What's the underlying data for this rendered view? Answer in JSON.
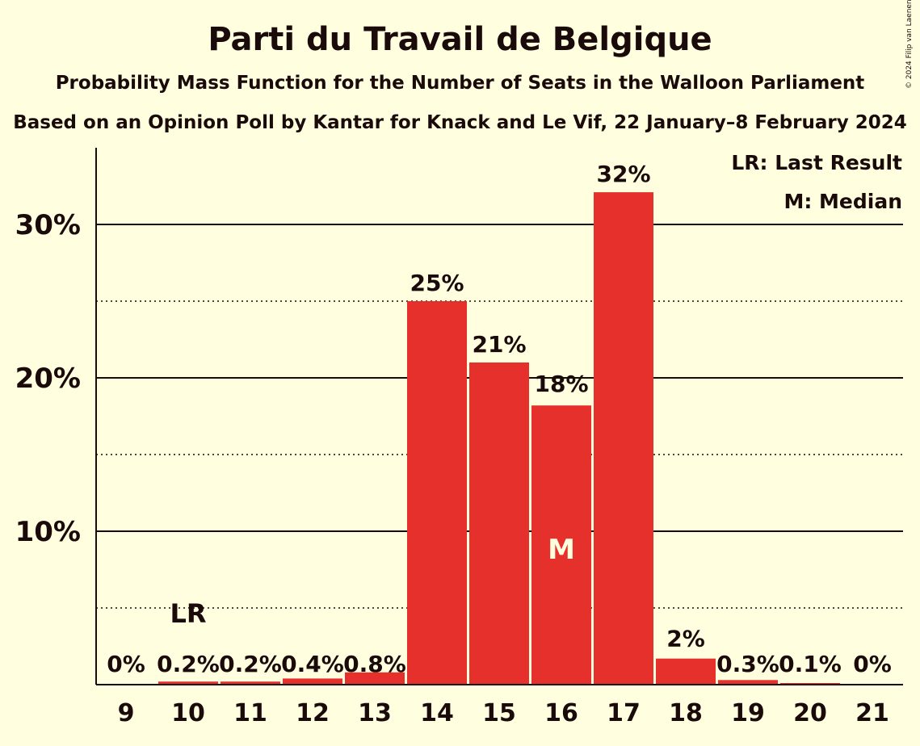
{
  "title": "Parti du Travail de Belgique",
  "subtitle": "Probability Mass Function for the Number of Seats in the Walloon Parliament",
  "subtitle2": "Based on an Opinion Poll by Kantar for Knack and Le Vif, 22 January–8 February 2024",
  "copyright": "© 2024 Filip van Laenen",
  "colors": {
    "bar": "#e6302b",
    "background": "#ffffe0",
    "text": "#1a0a0a"
  },
  "chart_data": {
    "type": "bar",
    "categories": [
      "9",
      "10",
      "11",
      "12",
      "13",
      "14",
      "15",
      "16",
      "17",
      "18",
      "19",
      "20",
      "21"
    ],
    "values": [
      0,
      0.2,
      0.2,
      0.4,
      0.8,
      25,
      21,
      18.2,
      32.1,
      1.7,
      0.3,
      0.1,
      0
    ],
    "value_labels": [
      "0%",
      "0.2%",
      "0.2%",
      "0.4%",
      "0.8%",
      "25%",
      "21%",
      "18%",
      "32%",
      "2%",
      "0.3%",
      "0.1%",
      "0%"
    ],
    "ylim": [
      0,
      35
    ],
    "yticks": [
      10,
      20,
      30
    ],
    "ytick_labels": [
      "10%",
      "20%",
      "30%"
    ],
    "grid": {
      "solid": [
        10,
        20,
        30
      ],
      "dotted": [
        5,
        15,
        25
      ]
    },
    "last_result": {
      "category": "10",
      "label": "LR"
    },
    "median": {
      "category": "16",
      "label": "M"
    },
    "legend": {
      "position": "top-right",
      "entries": [
        "LR: Last Result",
        "M: Median"
      ]
    }
  }
}
